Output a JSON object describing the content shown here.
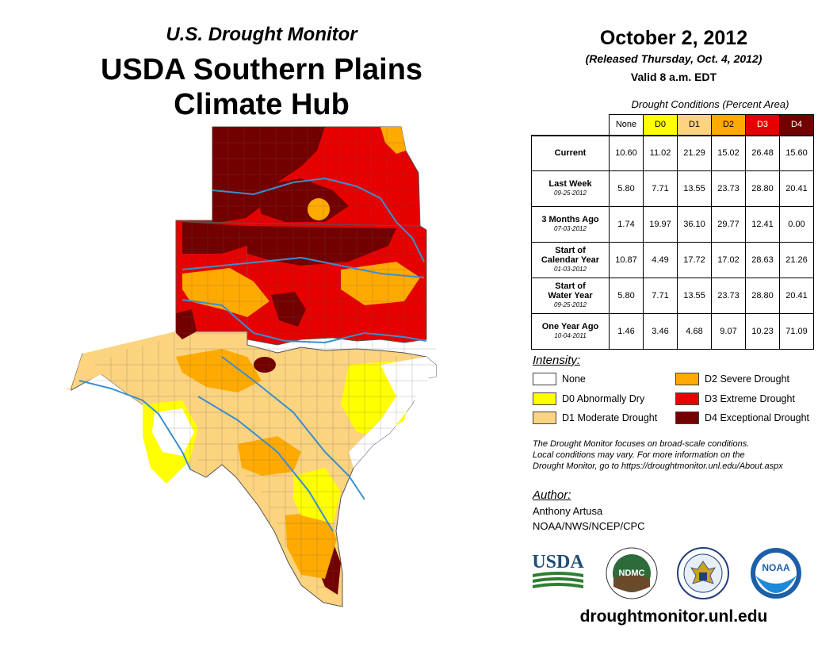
{
  "header": {
    "subtitle": "U.S. Drought Monitor",
    "title_line1": "USDA Southern Plains",
    "title_line2": "Climate Hub"
  },
  "report": {
    "date": "October 2, 2012",
    "released": "(Released Thursday, Oct. 4, 2012)",
    "valid": "Valid 8 a.m. EDT"
  },
  "table": {
    "caption": "Drought Conditions (Percent Area)",
    "columns": [
      {
        "label": "None",
        "color": "#ffffff",
        "text_color": "#000000"
      },
      {
        "label": "D0",
        "color": "#ffff00",
        "text_color": "#000000"
      },
      {
        "label": "D1",
        "color": "#fcd37f",
        "text_color": "#000000"
      },
      {
        "label": "D2",
        "color": "#ffaa00",
        "text_color": "#000000"
      },
      {
        "label": "D3",
        "color": "#e60000",
        "text_color": "#ffffff"
      },
      {
        "label": "D4",
        "color": "#730000",
        "text_color": "#ffffff"
      }
    ],
    "rows": [
      {
        "label": "Current",
        "label2": "",
        "date": "",
        "values": [
          "10.60",
          "11.02",
          "21.29",
          "15.02",
          "26.48",
          "15.60"
        ]
      },
      {
        "label": "Last Week",
        "label2": "",
        "date": "09-25-2012",
        "values": [
          "5.80",
          "7.71",
          "13.55",
          "23.73",
          "28.80",
          "20.41"
        ]
      },
      {
        "label": "3 Months Ago",
        "label2": "",
        "date": "07-03-2012",
        "values": [
          "1.74",
          "19.97",
          "36.10",
          "29.77",
          "12.41",
          "0.00"
        ]
      },
      {
        "label": "Start of",
        "label2": "Calendar Year",
        "date": "01-03-2012",
        "values": [
          "10.87",
          "4.49",
          "17.72",
          "17.02",
          "28.63",
          "21.26"
        ]
      },
      {
        "label": "Start of",
        "label2": "Water Year",
        "date": "09-25-2012",
        "values": [
          "5.80",
          "7.71",
          "13.55",
          "23.73",
          "28.80",
          "20.41"
        ]
      },
      {
        "label": "One Year Ago",
        "label2": "",
        "date": "10-04-2011",
        "values": [
          "1.46",
          "3.46",
          "4.68",
          "9.07",
          "10.23",
          "71.09"
        ]
      }
    ]
  },
  "legend": {
    "title": "Intensity:",
    "items": [
      {
        "label": "None",
        "color": "#ffffff"
      },
      {
        "label": "D0 Abnormally Dry",
        "color": "#ffff00"
      },
      {
        "label": "D1 Moderate Drought",
        "color": "#fcd37f"
      },
      {
        "label": "D2 Severe Drought",
        "color": "#ffaa00"
      },
      {
        "label": "D3 Extreme Drought",
        "color": "#e60000"
      },
      {
        "label": "D4 Exceptional Drought",
        "color": "#730000"
      }
    ]
  },
  "note": {
    "line1": "The Drought Monitor focuses on broad-scale conditions.",
    "line2": "Local conditions may vary. For more information on the",
    "line3": "Drought Monitor, go to https://droughtmonitor.unl.edu/About.aspx"
  },
  "author": {
    "title": "Author:",
    "name": "Anthony Artusa",
    "org": "NOAA/NWS/NCEP/CPC"
  },
  "logos": {
    "usda": "USDA",
    "ndmc": "NDMC",
    "noaa": "NOAA"
  },
  "footer": {
    "website": "droughtmonitor.unl.edu"
  }
}
